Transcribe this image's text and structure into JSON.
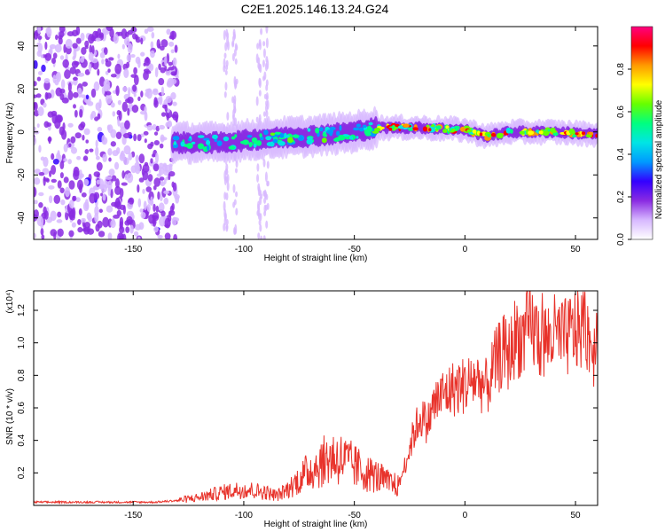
{
  "title": "C2E1.2025.146.13.24.G24",
  "chart_data": [
    {
      "type": "heatmap",
      "xlabel": "Height of straight line (km)",
      "ylabel": "Frequency (Hz)",
      "xlim": [
        -195,
        60
      ],
      "ylim": [
        -50,
        49
      ],
      "xticks": [
        -150,
        -100,
        -50,
        0,
        50
      ],
      "yticks": [
        -40,
        -20,
        0,
        20,
        40
      ],
      "colorbar": {
        "label": "Normalized spectral amplitude",
        "range": [
          0,
          1
        ],
        "ticks": [
          0.0,
          0.2,
          0.4,
          0.6,
          0.8
        ],
        "colors": [
          "#ffffff",
          "#d7b8ff",
          "#8a2be2",
          "#3300ff",
          "#0099ff",
          "#00e5e5",
          "#00ff80",
          "#66ff00",
          "#ffff00",
          "#ff9900",
          "#ff0000",
          "#ff0080"
        ]
      },
      "ridge": {
        "note_values": "center frequency along height",
        "x": [
          -130,
          -110,
          -90,
          -70,
          -50,
          -40,
          -20,
          0,
          10,
          20,
          40,
          58
        ],
        "y": [
          -5,
          -5,
          -3,
          -2,
          0,
          2,
          2,
          1,
          -2,
          0,
          0,
          -1
        ]
      },
      "grid": false
    },
    {
      "type": "line",
      "xlabel": "Height of straight line (km)",
      "ylabel": "SNR (10 * v/v)",
      "multiplier": "(x10⁴)",
      "xlim": [
        -195,
        60
      ],
      "ylim": [
        0,
        1.32
      ],
      "xticks": [
        -150,
        -100,
        -50,
        0,
        50
      ],
      "yticks": [
        0.2,
        0.4,
        0.6,
        0.8,
        1.0,
        1.2
      ],
      "series": [
        {
          "color": "#e8332b",
          "x": [
            -195,
            -180,
            -160,
            -140,
            -130,
            -120,
            -110,
            -100,
            -90,
            -85,
            -80,
            -75,
            -70,
            -65,
            -60,
            -55,
            -50,
            -45,
            -40,
            -35,
            -30,
            -26,
            -23,
            -20,
            -17,
            -14,
            -10,
            -5,
            0,
            5,
            10,
            13,
            17,
            20,
            23,
            26,
            30,
            35,
            40,
            45,
            50,
            55,
            58,
            60
          ],
          "values": [
            0.02,
            0.02,
            0.02,
            0.02,
            0.03,
            0.05,
            0.08,
            0.1,
            0.08,
            0.06,
            0.1,
            0.16,
            0.22,
            0.26,
            0.3,
            0.28,
            0.24,
            0.2,
            0.18,
            0.14,
            0.12,
            0.3,
            0.45,
            0.55,
            0.5,
            0.62,
            0.68,
            0.72,
            0.74,
            0.78,
            0.72,
            0.85,
            0.95,
            0.92,
            1.05,
            1.02,
            1.1,
            1.0,
            1.05,
            1.02,
            1.08,
            1.1,
            0.95,
            1.08
          ]
        }
      ],
      "grid": false
    }
  ]
}
